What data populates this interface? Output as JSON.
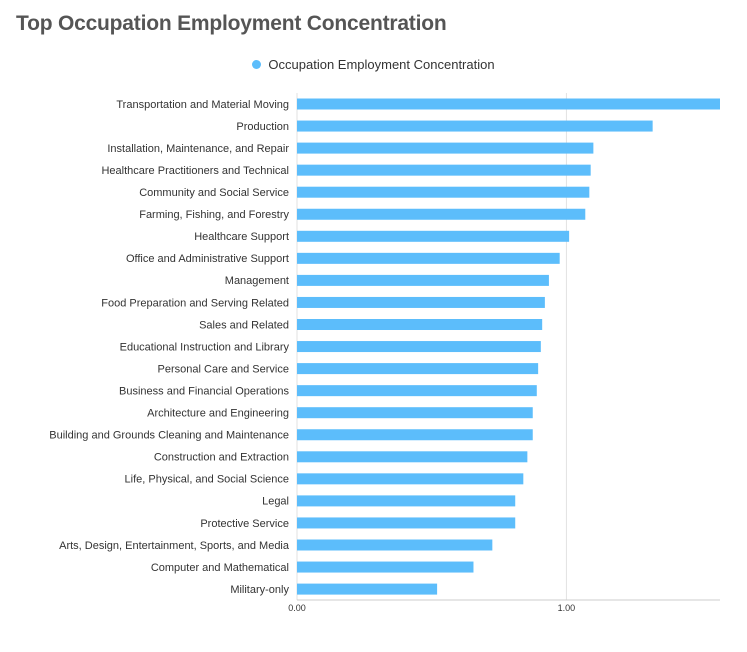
{
  "chart_data": {
    "type": "bar",
    "orientation": "horizontal",
    "title": "Top Occupation Employment Concentration",
    "legend": {
      "placement": "top-center",
      "entries": [
        "Occupation Employment Concentration"
      ]
    },
    "series": [
      {
        "name": "Occupation Employment Concentration",
        "color": "#5cbdfb",
        "values": [
          1.57,
          1.32,
          1.1,
          1.09,
          1.085,
          1.07,
          1.01,
          0.975,
          0.935,
          0.92,
          0.91,
          0.905,
          0.895,
          0.89,
          0.875,
          0.875,
          0.855,
          0.84,
          0.81,
          0.81,
          0.725,
          0.655,
          0.52
        ]
      }
    ],
    "categories": [
      "Transportation and Material Moving",
      "Production",
      "Installation, Maintenance, and Repair",
      "Healthcare Practitioners and Technical",
      "Community and Social Service",
      "Farming, Fishing, and Forestry",
      "Healthcare Support",
      "Office and Administrative Support",
      "Management",
      "Food Preparation and Serving Related",
      "Sales and Related",
      "Educational Instruction and Library",
      "Personal Care and Service",
      "Business and Financial Operations",
      "Architecture and Engineering",
      "Building and Grounds Cleaning and Maintenance",
      "Construction and Extraction",
      "Life, Physical, and Social Science",
      "Legal",
      "Protective Service",
      "Arts, Design, Entertainment, Sports, and Media",
      "Computer and Mathematical",
      "Military-only"
    ],
    "x_ticks": [
      {
        "value": 0,
        "label": "0.00"
      },
      {
        "value": 1,
        "label": "1.00"
      }
    ],
    "xlim": [
      0,
      1.57
    ],
    "xlabel": "",
    "ylabel": "",
    "grid": "vertical"
  }
}
